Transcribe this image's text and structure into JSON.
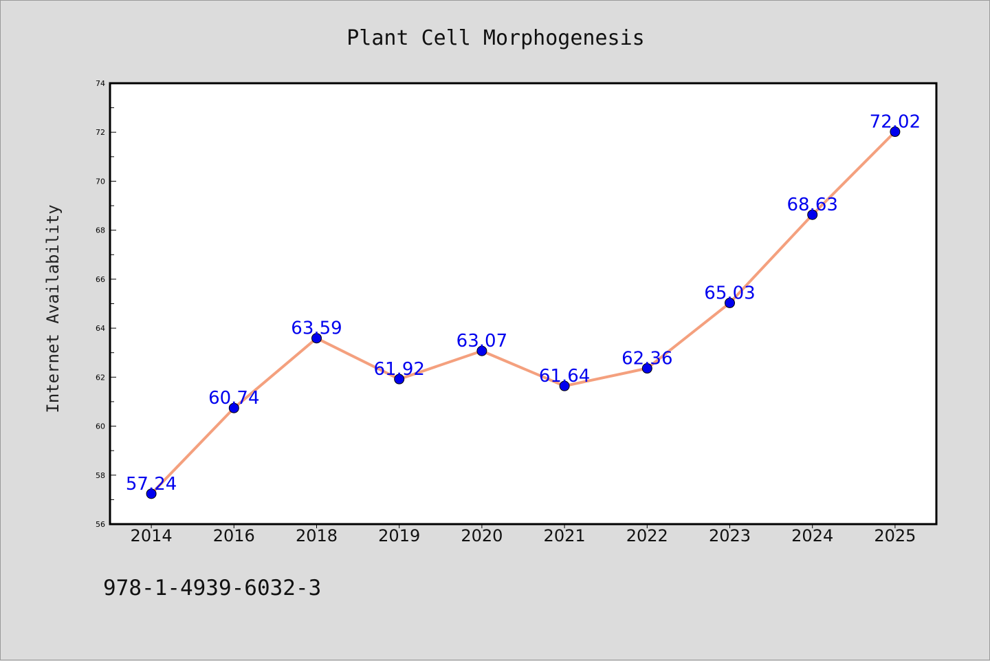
{
  "chart_data": {
    "type": "line",
    "title": "Plant Cell Morphogenesis",
    "xlabel": "",
    "ylabel": "Internet Availability",
    "categories": [
      "2014",
      "2016",
      "2018",
      "2019",
      "2020",
      "2021",
      "2022",
      "2023",
      "2024",
      "2025"
    ],
    "series": [
      {
        "values": [
          57.24,
          60.74,
          63.59,
          61.92,
          63.07,
          61.64,
          62.36,
          65.03,
          68.63,
          72.02
        ],
        "labels": [
          "57.24",
          "60.74",
          "63.59",
          "61.92",
          "63.07",
          "61.64",
          "62.36",
          "65.03",
          "68.63",
          "72.02"
        ]
      }
    ],
    "ylim": [
      56,
      74
    ],
    "yticks": [
      "56",
      "58",
      "60",
      "62",
      "64",
      "66",
      "68",
      "70",
      "72",
      "74"
    ],
    "grid": false,
    "colors": {
      "line": "#f4a07e",
      "marker": "#0000ee",
      "data_label": "#0000ee",
      "background": "#dcdcdc",
      "plot_background": "#ffffff"
    }
  },
  "footer": {
    "text": "978-1-4939-6032-3"
  }
}
